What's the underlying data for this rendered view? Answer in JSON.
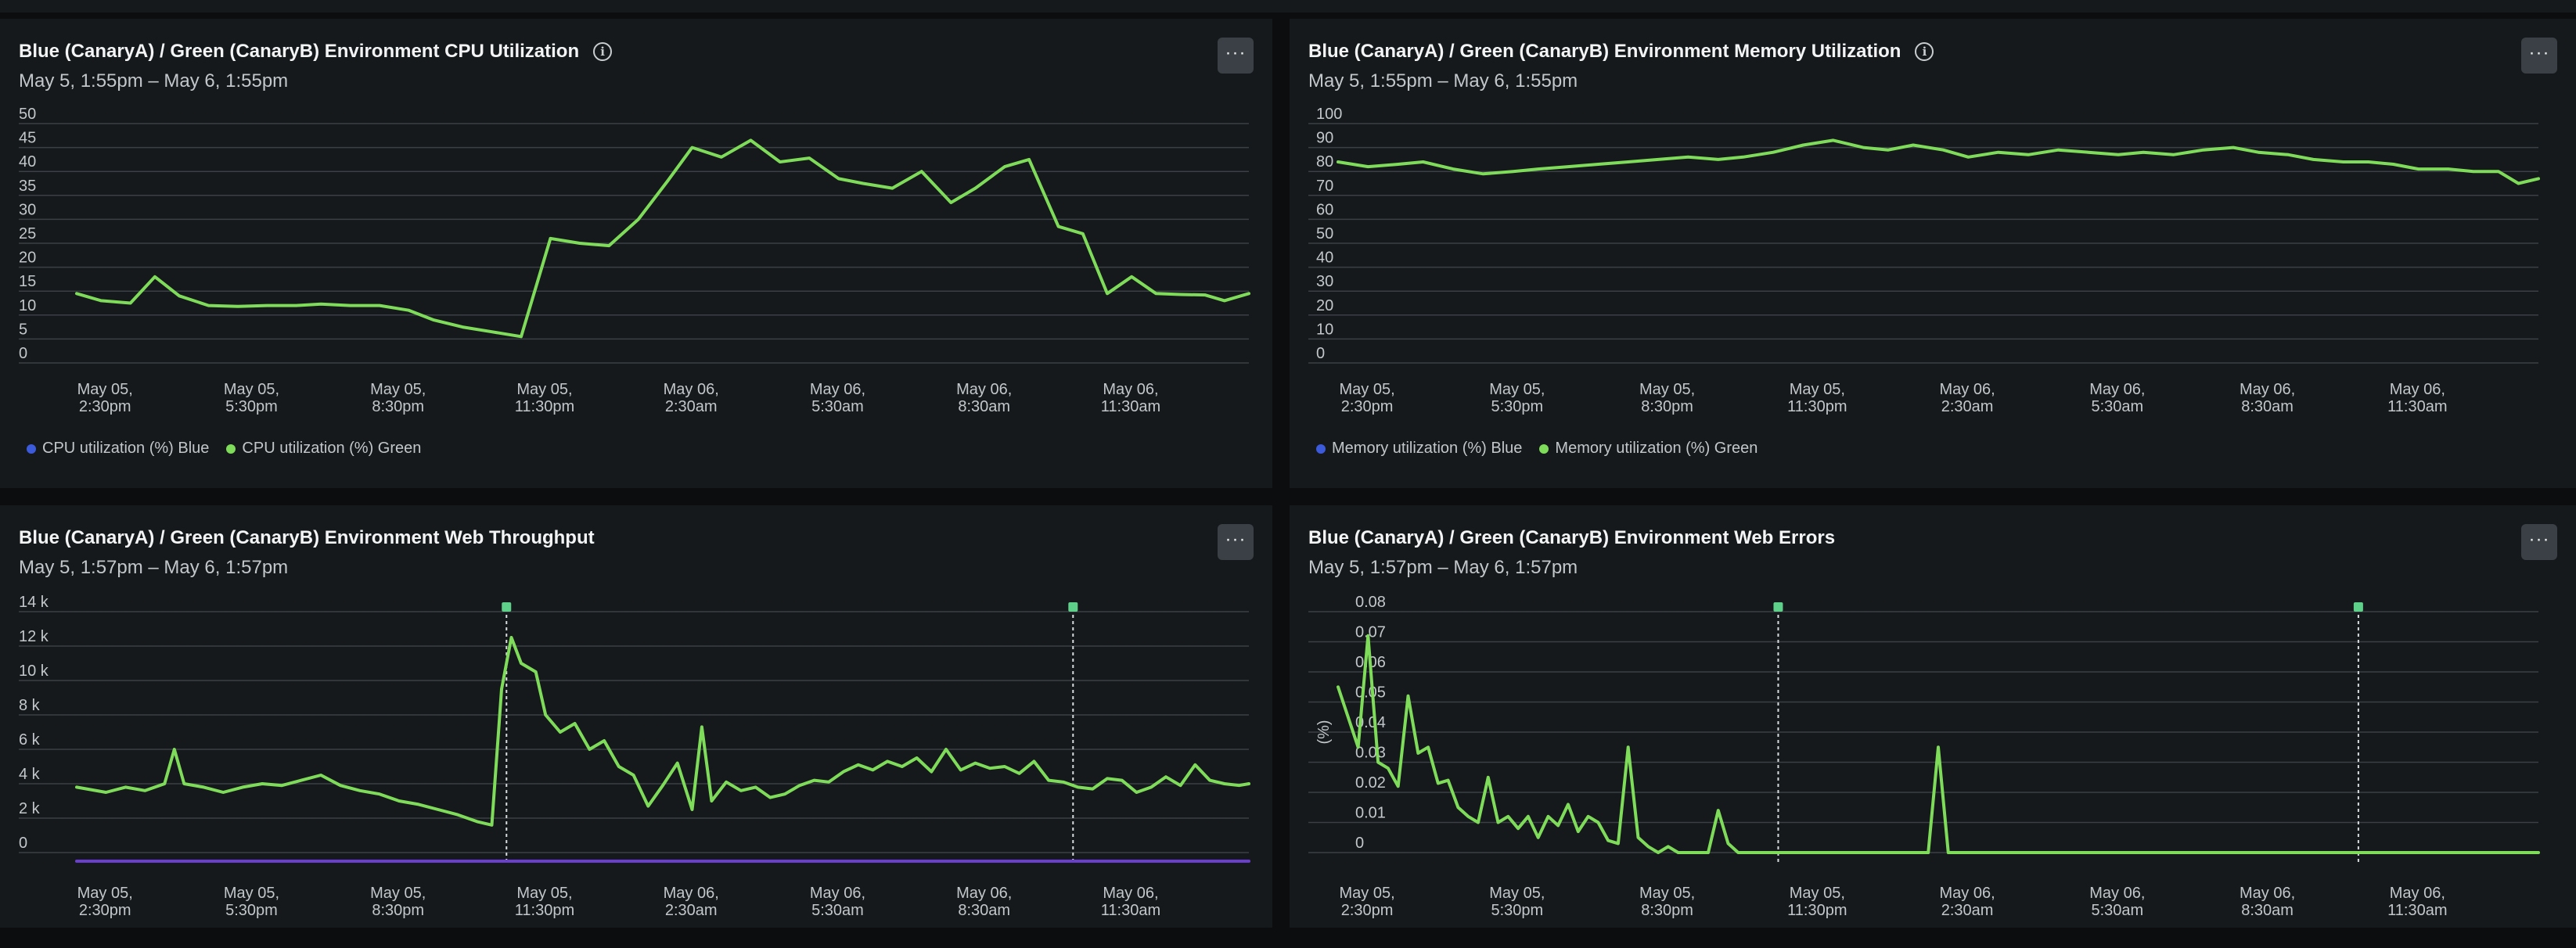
{
  "colors": {
    "green": "#7fdc5a",
    "blue": "#3b5bdb",
    "purple": "#6a3fd0",
    "grid": "#3a4045",
    "tick": "#c2c7cb",
    "marker": "#5fd089"
  },
  "menu_label": "···",
  "panels": [
    {
      "title": "Blue (CanaryA) / Green (CanaryB) Environment CPU Utilization",
      "time_range": "May 5, 1:55pm – May 6, 1:55pm",
      "has_info": true,
      "legend": [
        {
          "label": "CPU utilization (%) Blue",
          "color": "#3b5bdb"
        },
        {
          "label": "CPU utilization (%) Green",
          "color": "#7fdc5a"
        }
      ]
    },
    {
      "title": "Blue (CanaryA) / Green (CanaryB) Environment Memory Utilization",
      "time_range": "May 5, 1:55pm – May 6, 1:55pm",
      "has_info": true,
      "legend": [
        {
          "label": "Memory utilization (%) Blue",
          "color": "#3b5bdb"
        },
        {
          "label": "Memory utilization (%) Green",
          "color": "#7fdc5a"
        }
      ]
    },
    {
      "title": "Blue (CanaryA) / Green (CanaryB) Environment Web Throughput",
      "time_range": "May 5, 1:57pm – May 6, 1:57pm",
      "has_info": false,
      "legend": []
    },
    {
      "title": "Blue (CanaryA) / Green (CanaryB) Environment Web Errors",
      "time_range": "May 5, 1:57pm – May 6, 1:57pm",
      "has_info": false,
      "legend": []
    }
  ],
  "chart_data": [
    {
      "type": "line",
      "title": "Blue (CanaryA) / Green (CanaryB) Environment CPU Utilization",
      "ylabel": "",
      "yticks": [
        "50",
        "45",
        "40",
        "35",
        "30",
        "25",
        "20",
        "15",
        "10",
        "5",
        "0"
      ],
      "ylim": [
        0,
        50
      ],
      "xlim": [
        0,
        24
      ],
      "xticks": [
        {
          "x": 0.58,
          "l1": "May 05,",
          "l2": "2:30pm"
        },
        {
          "x": 3.58,
          "l1": "May 05,",
          "l2": "5:30pm"
        },
        {
          "x": 6.58,
          "l1": "May 05,",
          "l2": "8:30pm"
        },
        {
          "x": 9.58,
          "l1": "May 05,",
          "l2": "11:30pm"
        },
        {
          "x": 12.58,
          "l1": "May 06,",
          "l2": "2:30am"
        },
        {
          "x": 15.58,
          "l1": "May 06,",
          "l2": "5:30am"
        },
        {
          "x": 18.58,
          "l1": "May 06,",
          "l2": "8:30am"
        },
        {
          "x": 21.58,
          "l1": "May 06,",
          "l2": "11:30am"
        }
      ],
      "grid": true,
      "legend_position": "bottom-left",
      "series": [
        {
          "name": "CPU utilization (%) Green",
          "color": "#7fdc5a",
          "x": [
            0,
            0.5,
            1.1,
            1.6,
            2.1,
            2.7,
            3.3,
            3.9,
            4.5,
            5.0,
            5.6,
            6.2,
            6.8,
            7.3,
            7.9,
            8.5,
            9.1,
            9.7,
            10.3,
            10.9,
            11.5,
            12.1,
            12.6,
            13.2,
            13.8,
            14.4,
            15.0,
            15.6,
            16.1,
            16.7,
            17.3,
            17.9,
            18.4,
            19.0,
            19.5,
            20.1,
            20.6,
            21.1,
            21.6,
            22.1,
            22.6,
            23.1,
            23.5,
            24.0
          ],
          "y": [
            14.5,
            13,
            12.5,
            18,
            14,
            12,
            11.8,
            12,
            12,
            12.3,
            12,
            12,
            11,
            9,
            7.5,
            6.5,
            5.5,
            26,
            25,
            24.5,
            30,
            38,
            45,
            43,
            46.5,
            42,
            42.8,
            38.5,
            37.5,
            36.5,
            40,
            33.5,
            36.5,
            41,
            42.5,
            28.5,
            27,
            14.5,
            18,
            14.5,
            14.3,
            14.2,
            13,
            14.5
          ]
        }
      ]
    },
    {
      "type": "line",
      "title": "Blue (CanaryA) / Green (CanaryB) Environment Memory Utilization",
      "ylabel": "",
      "yticks": [
        "100",
        "90",
        "80",
        "70",
        "60",
        "50",
        "40",
        "30",
        "20",
        "10",
        "0"
      ],
      "ylim": [
        0,
        100
      ],
      "xlim": [
        0,
        24
      ],
      "xticks": [
        {
          "x": 0.58,
          "l1": "May 05,",
          "l2": "2:30pm"
        },
        {
          "x": 3.58,
          "l1": "May 05,",
          "l2": "5:30pm"
        },
        {
          "x": 6.58,
          "l1": "May 05,",
          "l2": "8:30pm"
        },
        {
          "x": 9.58,
          "l1": "May 05,",
          "l2": "11:30pm"
        },
        {
          "x": 12.58,
          "l1": "May 06,",
          "l2": "2:30am"
        },
        {
          "x": 15.58,
          "l1": "May 06,",
          "l2": "5:30am"
        },
        {
          "x": 18.58,
          "l1": "May 06,",
          "l2": "8:30am"
        },
        {
          "x": 21.58,
          "l1": "May 06,",
          "l2": "11:30am"
        }
      ],
      "grid": true,
      "legend_position": "bottom-left",
      "series": [
        {
          "name": "Memory utilization (%) Green",
          "color": "#7fdc5a",
          "x": [
            0,
            0.6,
            1.2,
            1.7,
            2.3,
            2.9,
            3.5,
            4.0,
            4.6,
            5.2,
            5.8,
            6.4,
            7.0,
            7.6,
            8.1,
            8.7,
            9.3,
            9.9,
            10.5,
            11.0,
            11.5,
            12.1,
            12.6,
            13.2,
            13.8,
            14.4,
            15.0,
            15.6,
            16.1,
            16.7,
            17.3,
            17.9,
            18.4,
            19.0,
            19.5,
            20.1,
            20.6,
            21.1,
            21.6,
            22.2,
            22.7,
            23.2,
            23.6,
            24.0
          ],
          "y": [
            84,
            82,
            83,
            84,
            81,
            79,
            80,
            81,
            82,
            83,
            84,
            85,
            86,
            85,
            86,
            88,
            91,
            93,
            90,
            89,
            91,
            89,
            86,
            88,
            87,
            89,
            88,
            87,
            88,
            87,
            89,
            90,
            88,
            87,
            85,
            84,
            84,
            83,
            81,
            81,
            80,
            80,
            75,
            77
          ]
        }
      ]
    },
    {
      "type": "line",
      "title": "Blue (CanaryA) / Green (CanaryB) Environment Web Throughput",
      "ylabel": "",
      "yticks": [
        "14 k",
        "12 k",
        "10 k",
        "8 k",
        "6 k",
        "4 k",
        "2 k",
        "0"
      ],
      "ylim": [
        0,
        14000
      ],
      "xlim": [
        0,
        24
      ],
      "xticks": [
        {
          "x": 0.58,
          "l1": "May 05,",
          "l2": "2:30pm"
        },
        {
          "x": 3.58,
          "l1": "May 05,",
          "l2": "5:30pm"
        },
        {
          "x": 6.58,
          "l1": "May 05,",
          "l2": "8:30pm"
        },
        {
          "x": 9.58,
          "l1": "May 05,",
          "l2": "11:30pm"
        },
        {
          "x": 12.58,
          "l1": "May 06,",
          "l2": "2:30am"
        },
        {
          "x": 15.58,
          "l1": "May 06,",
          "l2": "5:30am"
        },
        {
          "x": 18.58,
          "l1": "May 06,",
          "l2": "8:30am"
        },
        {
          "x": 21.58,
          "l1": "May 06,",
          "l2": "11:30am"
        }
      ],
      "grid": true,
      "markers_x": [
        8.8,
        20.4
      ],
      "series": [
        {
          "name": "",
          "color": "#6a3fd0",
          "x": [
            0,
            24
          ],
          "y": [
            -500,
            -500
          ]
        },
        {
          "name": "",
          "color": "#7fdc5a",
          "x": [
            0,
            0.6,
            1.0,
            1.4,
            1.8,
            2.0,
            2.2,
            2.6,
            3.0,
            3.4,
            3.8,
            4.2,
            4.6,
            5.0,
            5.4,
            5.8,
            6.2,
            6.6,
            7.0,
            7.4,
            7.8,
            8.2,
            8.5,
            8.7,
            8.9,
            9.1,
            9.4,
            9.6,
            9.9,
            10.2,
            10.5,
            10.8,
            11.1,
            11.4,
            11.7,
            12.0,
            12.3,
            12.6,
            12.8,
            13.0,
            13.3,
            13.6,
            13.9,
            14.2,
            14.5,
            14.8,
            15.1,
            15.4,
            15.7,
            16.0,
            16.3,
            16.6,
            16.9,
            17.2,
            17.5,
            17.8,
            18.1,
            18.4,
            18.7,
            19.0,
            19.3,
            19.6,
            19.9,
            20.2,
            20.5,
            20.8,
            21.1,
            21.4,
            21.7,
            22.0,
            22.3,
            22.6,
            22.9,
            23.2,
            23.5,
            23.8,
            24.0
          ],
          "y": [
            3800,
            3500,
            3800,
            3600,
            4000,
            6000,
            4000,
            3800,
            3500,
            3800,
            4000,
            3900,
            4200,
            4500,
            3900,
            3600,
            3400,
            3000,
            2800,
            2500,
            2200,
            1800,
            1600,
            9500,
            12500,
            11000,
            10500,
            8000,
            7000,
            7500,
            6000,
            6500,
            5000,
            4500,
            2700,
            3900,
            5200,
            2500,
            7300,
            3000,
            4100,
            3600,
            3800,
            3200,
            3400,
            3900,
            4200,
            4100,
            4700,
            5100,
            4800,
            5300,
            5000,
            5500,
            4700,
            6000,
            4800,
            5200,
            4900,
            5000,
            4600,
            5300,
            4200,
            4100,
            3800,
            3700,
            4300,
            4200,
            3500,
            3800,
            4400,
            3900,
            5100,
            4200,
            4000,
            3900,
            4000
          ]
        }
      ]
    },
    {
      "type": "line",
      "title": "Blue (CanaryA) / Green (CanaryB) Environment Web Errors",
      "ylabel": "(%)",
      "yticks": [
        "0.08",
        "0.07",
        "0.06",
        "0.05",
        "0.04",
        "0.03",
        "0.02",
        "0.01",
        "0"
      ],
      "ylim": [
        0,
        0.08
      ],
      "xlim": [
        0,
        24
      ],
      "xticks": [
        {
          "x": 0.58,
          "l1": "May 05,",
          "l2": "2:30pm"
        },
        {
          "x": 3.58,
          "l1": "May 05,",
          "l2": "5:30pm"
        },
        {
          "x": 6.58,
          "l1": "May 05,",
          "l2": "8:30pm"
        },
        {
          "x": 9.58,
          "l1": "May 05,",
          "l2": "11:30pm"
        },
        {
          "x": 12.58,
          "l1": "May 06,",
          "l2": "2:30am"
        },
        {
          "x": 15.58,
          "l1": "May 06,",
          "l2": "5:30am"
        },
        {
          "x": 18.58,
          "l1": "May 06,",
          "l2": "8:30am"
        },
        {
          "x": 21.58,
          "l1": "May 06,",
          "l2": "11:30am"
        }
      ],
      "grid": true,
      "markers_x": [
        8.8,
        20.4
      ],
      "series": [
        {
          "name": "",
          "color": "#7fdc5a",
          "x": [
            0,
            0.2,
            0.4,
            0.6,
            0.8,
            1.0,
            1.2,
            1.4,
            1.6,
            1.8,
            2.0,
            2.2,
            2.4,
            2.6,
            2.8,
            3.0,
            3.2,
            3.4,
            3.6,
            3.8,
            4.0,
            4.2,
            4.4,
            4.6,
            4.8,
            5.0,
            5.2,
            5.4,
            5.6,
            5.8,
            6.0,
            6.2,
            6.4,
            6.6,
            6.8,
            7.0,
            7.2,
            7.4,
            7.6,
            7.8,
            8.0,
            8.2,
            8.4,
            8.6,
            8.8,
            9.0,
            9.2,
            9.4,
            9.6,
            9.8,
            10.0,
            10.2,
            10.4,
            10.6,
            10.8,
            11.0,
            11.2,
            11.4,
            11.6,
            11.8,
            12.0,
            12.2,
            12.4,
            12.6,
            12.8,
            13.0,
            13.2,
            13.4,
            13.6,
            13.8,
            14.0,
            14.2,
            14.4,
            14.6,
            14.8,
            15.0,
            15.2,
            15.4,
            15.6,
            15.8,
            16.0,
            16.2,
            16.4,
            16.6,
            16.8,
            17.0,
            17.2,
            17.4,
            17.6,
            17.8,
            18.0,
            18.2,
            18.4,
            18.6,
            18.8,
            19.0,
            19.2,
            19.4,
            19.6,
            19.8,
            20.0,
            20.2,
            20.4,
            20.6,
            20.8,
            21.0,
            21.2,
            21.4,
            21.6,
            21.8,
            22.0,
            22.2,
            22.4,
            22.6,
            22.8,
            23.0,
            23.2,
            23.4,
            23.6,
            23.8,
            24.0
          ],
          "y": [
            0.055,
            0.045,
            0.035,
            0.072,
            0.03,
            0.028,
            0.022,
            0.052,
            0.033,
            0.035,
            0.023,
            0.024,
            0.015,
            0.012,
            0.01,
            0.025,
            0.01,
            0.012,
            0.008,
            0.012,
            0.005,
            0.012,
            0.009,
            0.016,
            0.007,
            0.012,
            0.01,
            0.004,
            0.003,
            0.035,
            0.005,
            0.002,
            0.0,
            0.002,
            0.0,
            0.0,
            0.0,
            0.0,
            0.014,
            0.003,
            0.0,
            0.0,
            0.0,
            0.0,
            0.0,
            0.0,
            0.0,
            0.0,
            0.0,
            0.0,
            0.0,
            0.0,
            0.0,
            0.0,
            0.0,
            0.0,
            0.0,
            0.0,
            0.0,
            0.0,
            0.035,
            0.0,
            0.0,
            0.0,
            0.0,
            0.0,
            0.0,
            0.0,
            0.0,
            0.0,
            0.0,
            0.0,
            0.0,
            0.0,
            0.0,
            0.0,
            0.0,
            0.0,
            0.0,
            0.0,
            0.0,
            0.0,
            0.0,
            0.0,
            0.0,
            0.0,
            0.0,
            0.0,
            0.0,
            0.0,
            0.0,
            0.0,
            0.0,
            0.0,
            0.0,
            0.0,
            0.0,
            0.0,
            0.0,
            0.0,
            0.0,
            0.0,
            0.0,
            0.0,
            0.0,
            0.0,
            0.0,
            0.0,
            0.0,
            0.0,
            0.0,
            0.0,
            0.0,
            0.0,
            0.0,
            0.0,
            0.0,
            0.0,
            0.0,
            0.0,
            0.0
          ]
        }
      ]
    }
  ]
}
